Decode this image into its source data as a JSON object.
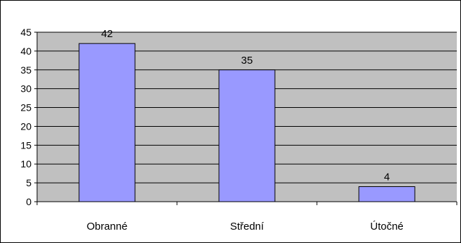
{
  "chart_data": {
    "type": "bar",
    "categories": [
      "Obranné",
      "Střední",
      "Útočné"
    ],
    "values": [
      42,
      35,
      4
    ],
    "data_labels": [
      "42",
      "35",
      "4"
    ],
    "y_ticks": [
      "0",
      "5",
      "10",
      "15",
      "20",
      "25",
      "30",
      "35",
      "40",
      "45"
    ],
    "ylim": [
      0,
      45
    ],
    "grid": true,
    "legend": "none",
    "colors": {
      "bar_fill": "#9999ff",
      "bar_stroke": "#000000",
      "plot_background": "#c0c0c0",
      "gridline": "#000000"
    }
  }
}
